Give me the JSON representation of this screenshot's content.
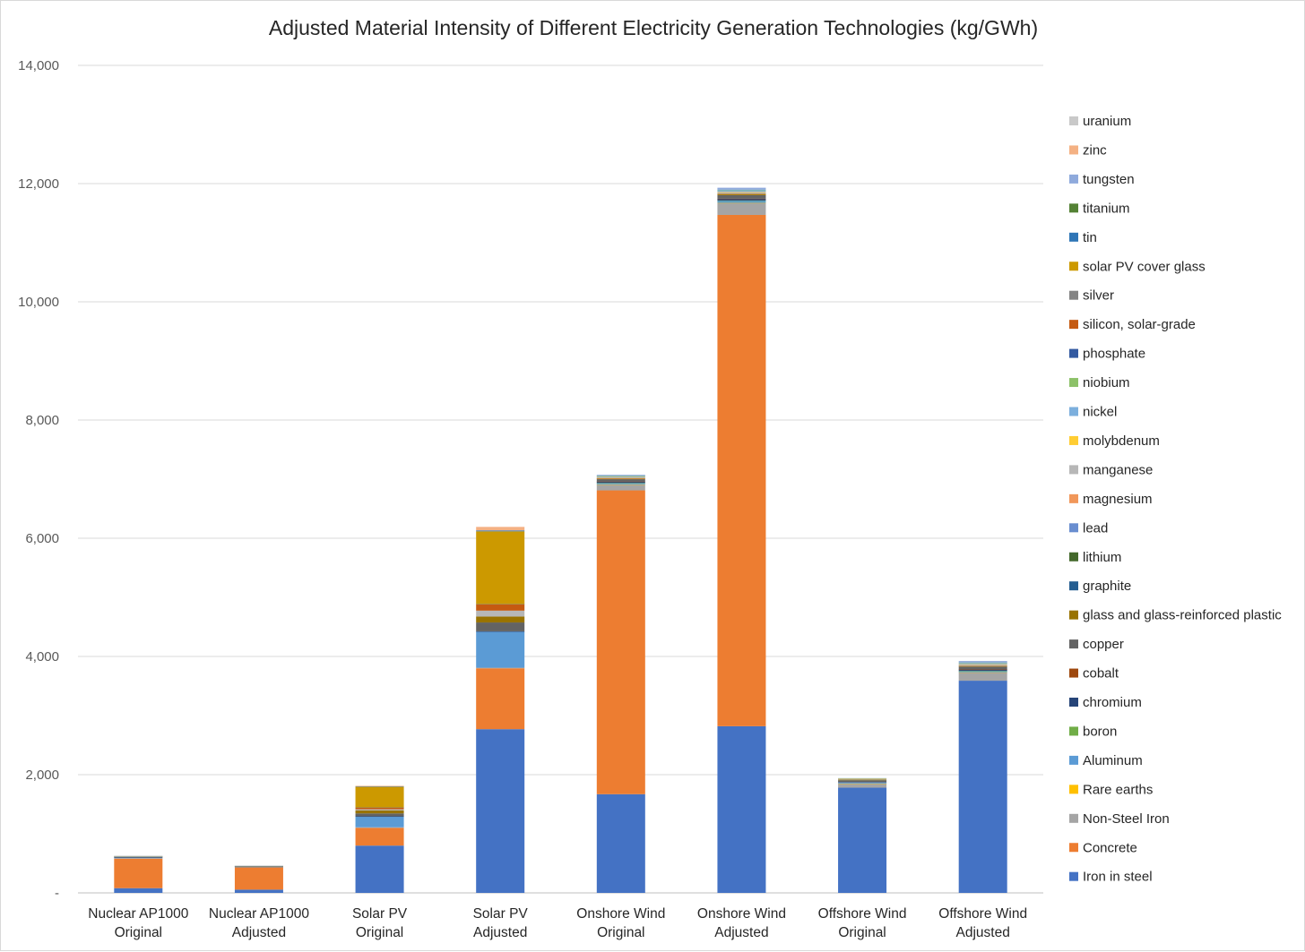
{
  "chart_data": {
    "type": "bar",
    "stacked": true,
    "title": "Adjusted Material Intensity of Different Electricity Generation Technologies (kg/GWh)",
    "xlabel": "",
    "ylabel": "",
    "ylim": [
      0,
      14000
    ],
    "y_ticks": [
      0,
      2000,
      4000,
      6000,
      8000,
      10000,
      12000,
      14000
    ],
    "y_tick_labels": [
      "-",
      "2,000",
      "4,000",
      "6,000",
      "8,000",
      "10,000",
      "12,000",
      "14,000"
    ],
    "grid": true,
    "legend_position": "right",
    "categories": [
      [
        "Nuclear AP1000",
        "Original"
      ],
      [
        "Nuclear AP1000",
        "Adjusted"
      ],
      [
        "Solar PV",
        "Original"
      ],
      [
        "Solar PV",
        "Adjusted"
      ],
      [
        "Onshore Wind",
        "Original"
      ],
      [
        "Onshore Wind",
        "Adjusted"
      ],
      [
        "Offshore Wind",
        "Original"
      ],
      [
        "Offshore Wind",
        "Adjusted"
      ]
    ],
    "series": [
      {
        "name": "Iron in steel",
        "color": "#4472c4",
        "values": [
          80,
          55,
          800,
          2770,
          1670,
          2820,
          1780,
          3590
        ]
      },
      {
        "name": "Concrete",
        "color": "#ed7d31",
        "values": [
          500,
          380,
          300,
          1030,
          5140,
          8650,
          0,
          0
        ]
      },
      {
        "name": "Non-Steel Iron",
        "color": "#a5a5a5",
        "values": [
          10,
          5,
          10,
          10,
          100,
          200,
          70,
          140
        ]
      },
      {
        "name": "Rare earths",
        "color": "#ffc000",
        "values": [
          0,
          0,
          0,
          0,
          2,
          3,
          1,
          2
        ]
      },
      {
        "name": "Aluminum",
        "color": "#5b9bd5",
        "values": [
          5,
          3,
          180,
          610,
          25,
          40,
          15,
          25
        ]
      },
      {
        "name": "boron",
        "color": "#70ad47",
        "values": [
          0,
          0,
          0,
          0,
          1,
          1,
          0,
          1
        ]
      },
      {
        "name": "chromium",
        "color": "#264478",
        "values": [
          5,
          3,
          5,
          5,
          20,
          30,
          10,
          20
        ]
      },
      {
        "name": "cobalt",
        "color": "#9e480e",
        "values": [
          0,
          0,
          0,
          0,
          1,
          1,
          0,
          1
        ]
      },
      {
        "name": "copper",
        "color": "#636363",
        "values": [
          10,
          5,
          50,
          150,
          40,
          60,
          30,
          50
        ]
      },
      {
        "name": "glass and glass-reinforced plastic",
        "color": "#997300",
        "values": [
          0,
          0,
          50,
          100,
          15,
          25,
          10,
          15
        ]
      },
      {
        "name": "graphite",
        "color": "#255e91",
        "values": [
          2,
          1,
          0,
          0,
          0,
          0,
          0,
          0
        ]
      },
      {
        "name": "lithium",
        "color": "#43682b",
        "values": [
          0,
          0,
          0,
          0,
          0,
          0,
          0,
          0
        ]
      },
      {
        "name": "lead",
        "color": "#698ed0",
        "values": [
          3,
          2,
          0,
          0,
          0,
          0,
          0,
          0
        ]
      },
      {
        "name": "magnesium",
        "color": "#f1975a",
        "values": [
          0,
          0,
          0,
          0,
          1,
          1,
          0,
          1
        ]
      },
      {
        "name": "manganese",
        "color": "#b7b7b7",
        "values": [
          5,
          3,
          20,
          100,
          20,
          30,
          15,
          25
        ]
      },
      {
        "name": "molybdenum",
        "color": "#ffcd33",
        "values": [
          1,
          1,
          0,
          0,
          2,
          3,
          1,
          2
        ]
      },
      {
        "name": "nickel",
        "color": "#7cafdd",
        "values": [
          5,
          3,
          0,
          0,
          20,
          30,
          10,
          25
        ]
      },
      {
        "name": "niobium",
        "color": "#8cc168",
        "values": [
          0,
          0,
          0,
          0,
          1,
          1,
          0,
          1
        ]
      },
      {
        "name": "phosphate",
        "color": "#335aa1",
        "values": [
          0,
          0,
          0,
          0,
          0,
          0,
          0,
          0
        ]
      },
      {
        "name": "silicon, solar-grade",
        "color": "#c55a11",
        "values": [
          0,
          0,
          30,
          110,
          0,
          0,
          0,
          0
        ]
      },
      {
        "name": "silver",
        "color": "#848484",
        "values": [
          0,
          0,
          1,
          2,
          0,
          0,
          0,
          0
        ]
      },
      {
        "name": "solar PV cover glass",
        "color": "#cc9900",
        "values": [
          0,
          0,
          350,
          1230,
          0,
          0,
          0,
          0
        ]
      },
      {
        "name": "tin",
        "color": "#2e75b6",
        "values": [
          0,
          0,
          5,
          15,
          0,
          0,
          0,
          0
        ]
      },
      {
        "name": "titanium",
        "color": "#548235",
        "values": [
          0,
          0,
          0,
          0,
          0,
          0,
          0,
          0
        ]
      },
      {
        "name": "tungsten",
        "color": "#8faadc",
        "values": [
          0,
          0,
          0,
          0,
          15,
          35,
          0,
          25
        ]
      },
      {
        "name": "zinc",
        "color": "#f4b183",
        "values": [
          0,
          0,
          10,
          60,
          0,
          0,
          0,
          0
        ]
      },
      {
        "name": "uranium",
        "color": "#c9c9c9",
        "values": [
          3,
          2,
          0,
          0,
          0,
          0,
          0,
          0
        ]
      }
    ]
  }
}
